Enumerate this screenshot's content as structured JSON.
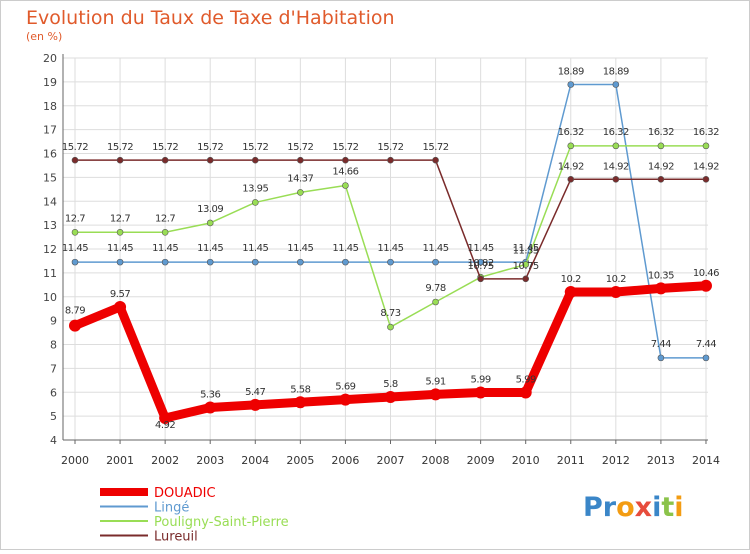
{
  "chart_data": {
    "type": "line",
    "title": "Evolution du Taux de Taxe d'Habitation",
    "subtitle": "(en %)",
    "x": [
      2000,
      2001,
      2002,
      2003,
      2004,
      2005,
      2006,
      2007,
      2008,
      2009,
      2010,
      2011,
      2012,
      2013,
      2014
    ],
    "ylim": [
      4,
      20
    ],
    "yticks": [
      4,
      5,
      6,
      7,
      8,
      9,
      10,
      11,
      12,
      13,
      14,
      15,
      16,
      17,
      18,
      19,
      20
    ],
    "grid": true,
    "legend_position": "bottom-left",
    "series": [
      {
        "name": "DOUADIC",
        "color": "#ee0000",
        "values": [
          8.79,
          9.57,
          4.92,
          5.36,
          5.47,
          5.58,
          5.69,
          5.8,
          5.91,
          5.99,
          5.99,
          10.2,
          10.2,
          10.35,
          10.46
        ],
        "labels": [
          "8.79",
          "9.57",
          "4.92",
          "5.36",
          "5.47",
          "5.58",
          "5.69",
          "5.8",
          "5.91",
          "5.99",
          "5.99",
          "10.2",
          "10.2",
          "10.35",
          "10.46"
        ]
      },
      {
        "name": "Lingé",
        "color": "#5f9ad0",
        "values": [
          11.45,
          11.45,
          11.45,
          11.45,
          11.45,
          11.45,
          11.45,
          11.45,
          11.45,
          11.45,
          11.45,
          18.89,
          18.89,
          7.44,
          7.44
        ],
        "labels": [
          "11.45",
          "11.45",
          "11.45",
          "11.45",
          "11.45",
          "11.45",
          "11.45",
          "11.45",
          "11.45",
          "11.45",
          "11.45",
          "18.89",
          "18.89",
          "7.44",
          "7.44"
        ]
      },
      {
        "name": "Pouligny-Saint-Pierre",
        "color": "#99dd55",
        "values": [
          12.7,
          12.7,
          12.7,
          13.09,
          13.95,
          14.37,
          14.66,
          8.73,
          9.78,
          10.82,
          11.35,
          16.32,
          16.32,
          16.32,
          16.32
        ],
        "labels": [
          "12.7",
          "12.7",
          "12.7",
          "13.09",
          "13.95",
          "14.37",
          "14.66",
          "8.73",
          "9.78",
          "10.82",
          "11.35",
          "16.32",
          "16.32",
          "16.32",
          "16.32"
        ]
      },
      {
        "name": "Lureuil",
        "color": "#7a2b2b",
        "values": [
          15.72,
          15.72,
          15.72,
          15.72,
          15.72,
          15.72,
          15.72,
          15.72,
          15.72,
          10.75,
          10.75,
          14.92,
          14.92,
          14.92,
          14.92
        ],
        "labels": [
          "15.72",
          "15.72",
          "15.72",
          "15.72",
          "15.72",
          "15.72",
          "15.72",
          "15.72",
          "15.72",
          "10.75",
          "10.75",
          "14.92",
          "14.92",
          "14.92",
          "14.92"
        ]
      }
    ]
  },
  "logo": {
    "text": "Proxiti"
  }
}
